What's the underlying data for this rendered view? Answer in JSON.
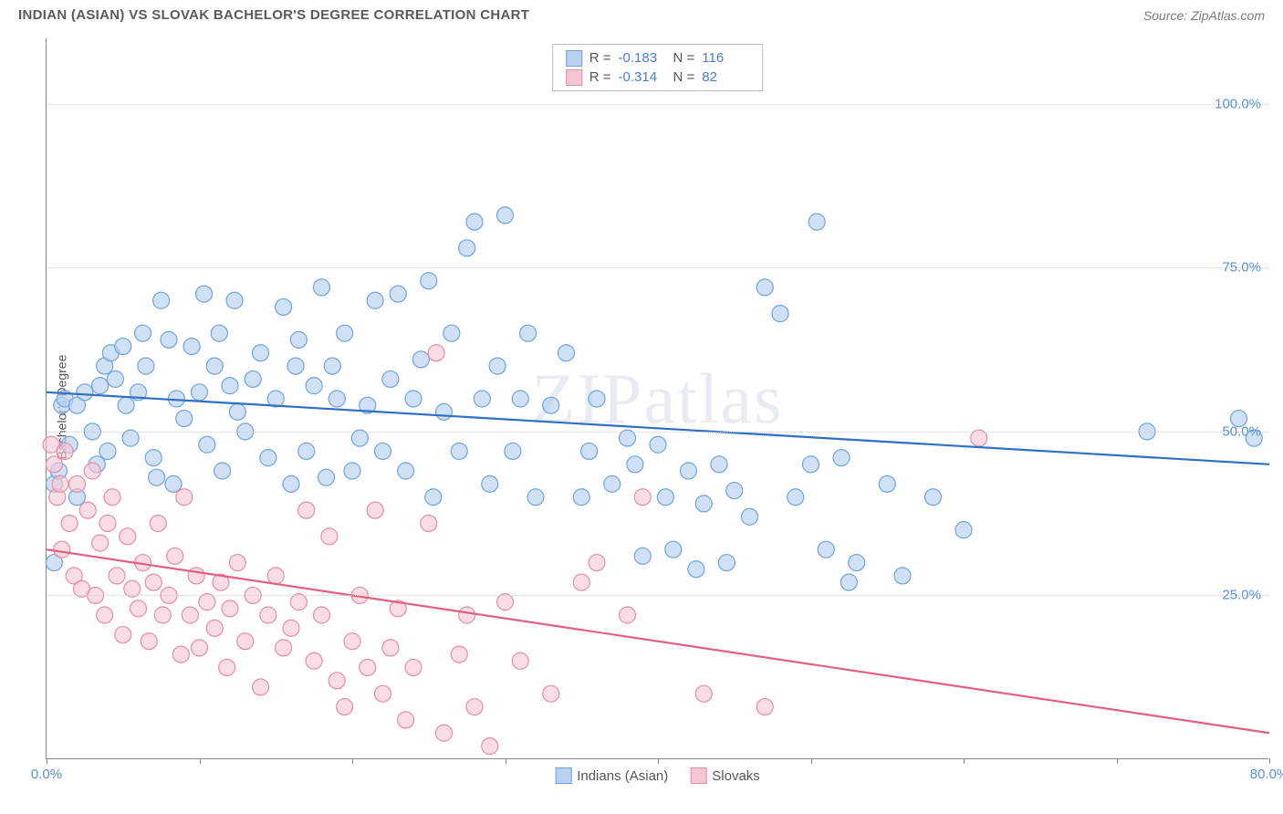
{
  "title": "INDIAN (ASIAN) VS SLOVAK BACHELOR'S DEGREE CORRELATION CHART",
  "source": "Source: ZipAtlas.com",
  "watermark": "ZIPatlas",
  "ylabel": "Bachelor's Degree",
  "chart": {
    "type": "scatter",
    "xlim": [
      0,
      80
    ],
    "ylim": [
      0,
      110
    ],
    "xtick_step": 10,
    "ytick_step": 25,
    "ytick_start": 25,
    "ytick_end": 100,
    "grid_color": "#d8d8d8",
    "background_color": "#ffffff",
    "axis_color": "#888888",
    "tick_label_color": "#5b8fd6",
    "label_fontsize": 14,
    "tick_fontsize": 15,
    "xtick_labels": {
      "first": "0.0%",
      "last": "80.0%"
    },
    "ytick_suffix": ".0%",
    "marker_radius": 9,
    "marker_stroke_width": 1.2,
    "trend_line_width": 2.2
  },
  "legend": {
    "items": [
      {
        "label": "Indians (Asian)",
        "fill": "#b7d1ef",
        "stroke": "#6fa3de"
      },
      {
        "label": "Slovaks",
        "fill": "#f6c7d2",
        "stroke": "#e78ca5"
      }
    ]
  },
  "stats": [
    {
      "fill": "#b7d1ef",
      "stroke": "#6fa3de",
      "r": "-0.183",
      "n": "116"
    },
    {
      "fill": "#f6c7d2",
      "stroke": "#e78ca5",
      "r": "-0.314",
      "n": "82"
    }
  ],
  "series": [
    {
      "name": "Indians (Asian)",
      "fill": "#b7d1ef",
      "stroke": "#6fa3de",
      "fill_opacity": 0.65,
      "trend": {
        "x1": 0,
        "y1": 56,
        "x2": 80,
        "y2": 45,
        "color": "#2f6fc4"
      },
      "points": [
        [
          0.5,
          30
        ],
        [
          0.5,
          42
        ],
        [
          0.8,
          44
        ],
        [
          1,
          54
        ],
        [
          1.2,
          55
        ],
        [
          1.5,
          48
        ],
        [
          2,
          40
        ],
        [
          2,
          54
        ],
        [
          2.5,
          56
        ],
        [
          3,
          50
        ],
        [
          3.3,
          45
        ],
        [
          3.5,
          57
        ],
        [
          3.8,
          60
        ],
        [
          4,
          47
        ],
        [
          4.2,
          62
        ],
        [
          4.5,
          58
        ],
        [
          5,
          63
        ],
        [
          5.2,
          54
        ],
        [
          5.5,
          49
        ],
        [
          6,
          56
        ],
        [
          6.3,
          65
        ],
        [
          6.5,
          60
        ],
        [
          7,
          46
        ],
        [
          7.2,
          43
        ],
        [
          7.5,
          70
        ],
        [
          8,
          64
        ],
        [
          8.3,
          42
        ],
        [
          8.5,
          55
        ],
        [
          9,
          52
        ],
        [
          9.5,
          63
        ],
        [
          10,
          56
        ],
        [
          10.3,
          71
        ],
        [
          10.5,
          48
        ],
        [
          11,
          60
        ],
        [
          11.3,
          65
        ],
        [
          11.5,
          44
        ],
        [
          12,
          57
        ],
        [
          12.3,
          70
        ],
        [
          12.5,
          53
        ],
        [
          13,
          50
        ],
        [
          13.5,
          58
        ],
        [
          14,
          62
        ],
        [
          14.5,
          46
        ],
        [
          15,
          55
        ],
        [
          15.5,
          69
        ],
        [
          16,
          42
        ],
        [
          16.3,
          60
        ],
        [
          16.5,
          64
        ],
        [
          17,
          47
        ],
        [
          17.5,
          57
        ],
        [
          18,
          72
        ],
        [
          18.3,
          43
        ],
        [
          18.7,
          60
        ],
        [
          19,
          55
        ],
        [
          19.5,
          65
        ],
        [
          20,
          44
        ],
        [
          20.5,
          49
        ],
        [
          21,
          54
        ],
        [
          21.5,
          70
        ],
        [
          22,
          47
        ],
        [
          22.5,
          58
        ],
        [
          23,
          71
        ],
        [
          23.5,
          44
        ],
        [
          24,
          55
        ],
        [
          24.5,
          61
        ],
        [
          25,
          73
        ],
        [
          25.3,
          40
        ],
        [
          26,
          53
        ],
        [
          26.5,
          65
        ],
        [
          27,
          47
        ],
        [
          27.5,
          78
        ],
        [
          28,
          82
        ],
        [
          28.5,
          55
        ],
        [
          29,
          42
        ],
        [
          29.5,
          60
        ],
        [
          30,
          83
        ],
        [
          30.5,
          47
        ],
        [
          31,
          55
        ],
        [
          31.5,
          65
        ],
        [
          32,
          40
        ],
        [
          33,
          54
        ],
        [
          34,
          62
        ],
        [
          35,
          40
        ],
        [
          35.5,
          47
        ],
        [
          36,
          55
        ],
        [
          37,
          42
        ],
        [
          38,
          49
        ],
        [
          38.5,
          45
        ],
        [
          39,
          31
        ],
        [
          40,
          48
        ],
        [
          40.5,
          40
        ],
        [
          41,
          32
        ],
        [
          42,
          44
        ],
        [
          42.5,
          29
        ],
        [
          43,
          39
        ],
        [
          44,
          45
        ],
        [
          44.5,
          30
        ],
        [
          45,
          41
        ],
        [
          46,
          37
        ],
        [
          47,
          72
        ],
        [
          48,
          68
        ],
        [
          49,
          40
        ],
        [
          50,
          45
        ],
        [
          50.4,
          82
        ],
        [
          51,
          32
        ],
        [
          52,
          46
        ],
        [
          52.5,
          27
        ],
        [
          53,
          30
        ],
        [
          55,
          42
        ],
        [
          56,
          28
        ],
        [
          58,
          40
        ],
        [
          60,
          35
        ],
        [
          72,
          50
        ],
        [
          78,
          52
        ],
        [
          79,
          49
        ]
      ]
    },
    {
      "name": "Slovaks",
      "fill": "#f6c7d2",
      "stroke": "#e78ca5",
      "fill_opacity": 0.6,
      "trend": {
        "x1": 0,
        "y1": 32,
        "x2": 80,
        "y2": 4,
        "color": "#e0607f"
      },
      "points": [
        [
          0.3,
          48
        ],
        [
          0.5,
          45
        ],
        [
          0.7,
          40
        ],
        [
          0.9,
          42
        ],
        [
          1,
          32
        ],
        [
          1.2,
          47
        ],
        [
          1.5,
          36
        ],
        [
          1.8,
          28
        ],
        [
          2,
          42
        ],
        [
          2.3,
          26
        ],
        [
          2.7,
          38
        ],
        [
          3,
          44
        ],
        [
          3.2,
          25
        ],
        [
          3.5,
          33
        ],
        [
          3.8,
          22
        ],
        [
          4,
          36
        ],
        [
          4.3,
          40
        ],
        [
          4.6,
          28
        ],
        [
          5,
          19
        ],
        [
          5.3,
          34
        ],
        [
          5.6,
          26
        ],
        [
          6,
          23
        ],
        [
          6.3,
          30
        ],
        [
          6.7,
          18
        ],
        [
          7,
          27
        ],
        [
          7.3,
          36
        ],
        [
          7.6,
          22
        ],
        [
          8,
          25
        ],
        [
          8.4,
          31
        ],
        [
          8.8,
          16
        ],
        [
          9,
          40
        ],
        [
          9.4,
          22
        ],
        [
          9.8,
          28
        ],
        [
          10,
          17
        ],
        [
          10.5,
          24
        ],
        [
          11,
          20
        ],
        [
          11.4,
          27
        ],
        [
          11.8,
          14
        ],
        [
          12,
          23
        ],
        [
          12.5,
          30
        ],
        [
          13,
          18
        ],
        [
          13.5,
          25
        ],
        [
          14,
          11
        ],
        [
          14.5,
          22
        ],
        [
          15,
          28
        ],
        [
          15.5,
          17
        ],
        [
          16,
          20
        ],
        [
          16.5,
          24
        ],
        [
          17,
          38
        ],
        [
          17.5,
          15
        ],
        [
          18,
          22
        ],
        [
          18.5,
          34
        ],
        [
          19,
          12
        ],
        [
          19.5,
          8
        ],
        [
          20,
          18
        ],
        [
          20.5,
          25
        ],
        [
          21,
          14
        ],
        [
          21.5,
          38
        ],
        [
          22,
          10
        ],
        [
          22.5,
          17
        ],
        [
          23,
          23
        ],
        [
          23.5,
          6
        ],
        [
          24,
          14
        ],
        [
          25,
          36
        ],
        [
          25.5,
          62
        ],
        [
          26,
          4
        ],
        [
          27,
          16
        ],
        [
          27.5,
          22
        ],
        [
          28,
          8
        ],
        [
          29,
          2
        ],
        [
          30,
          24
        ],
        [
          31,
          15
        ],
        [
          33,
          10
        ],
        [
          35,
          27
        ],
        [
          36,
          30
        ],
        [
          38,
          22
        ],
        [
          39,
          40
        ],
        [
          43,
          10
        ],
        [
          47,
          8
        ],
        [
          61,
          49
        ]
      ]
    }
  ]
}
